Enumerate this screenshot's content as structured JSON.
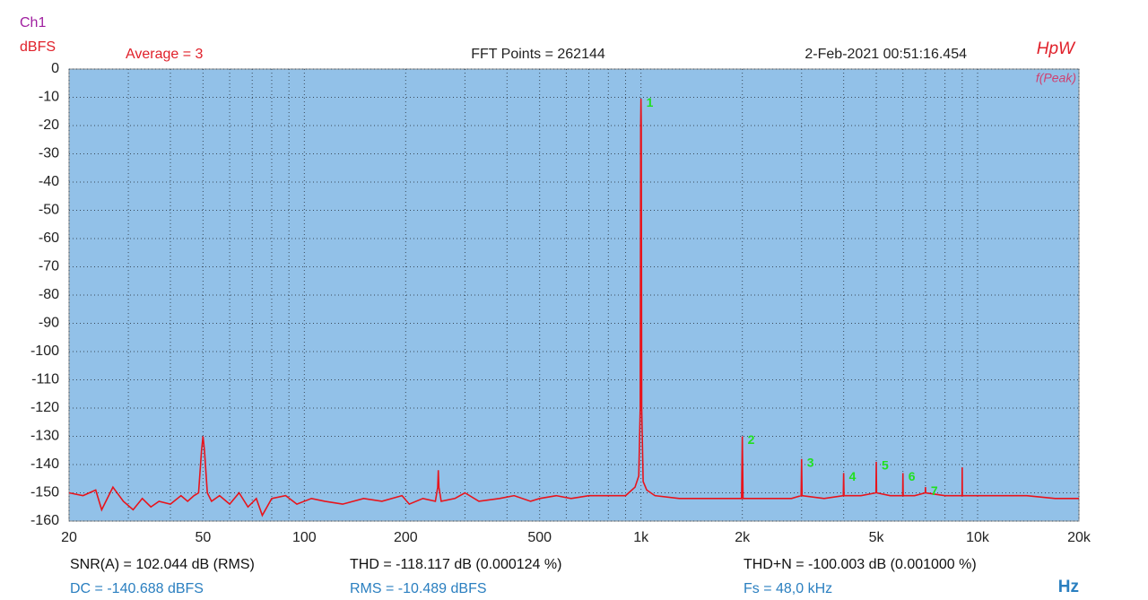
{
  "chart_data": {
    "type": "line",
    "channel": "Ch1",
    "y_label": "dBFS",
    "x_label": "Hz",
    "header": [
      "Average = 3",
      "FFT Points = 262144",
      "2-Feb-2021 00:51:16.454"
    ],
    "brand": "HpW",
    "marker_mode": "f(Peak)",
    "xlog": true,
    "grid": true,
    "xlim": [
      20,
      20000
    ],
    "ylim": [
      -160,
      0
    ],
    "xticks": [
      20,
      50,
      100,
      200,
      500,
      {
        "value": 1000,
        "label": "1k"
      },
      {
        "value": 2000,
        "label": "2k"
      },
      {
        "value": 5000,
        "label": "5k"
      },
      {
        "value": 10000,
        "label": "10k"
      },
      {
        "value": 20000,
        "label": "20k"
      }
    ],
    "xgrid": [
      30,
      40,
      60,
      70,
      80,
      90,
      300,
      400,
      600,
      700,
      800,
      900,
      3000,
      4000,
      6000,
      7000,
      8000,
      9000
    ],
    "yticks": [
      0,
      -10,
      -20,
      -30,
      -40,
      -50,
      -60,
      -70,
      -80,
      -90,
      -100,
      -110,
      -120,
      -130,
      -140,
      -150,
      -160
    ],
    "series": [
      {
        "name": "Ch1",
        "color": "#e8141c",
        "x": [
          20,
          22,
          24,
          25,
          27,
          29,
          31,
          33,
          35,
          37,
          40,
          43,
          45,
          47,
          48.5,
          49.5,
          50,
          50.5,
          51.5,
          53,
          56,
          60,
          64,
          68,
          72,
          75,
          80,
          88,
          95,
          105,
          115,
          130,
          150,
          170,
          195,
          205,
          225,
          245,
          249,
          250,
          251,
          255,
          280,
          300,
          330,
          380,
          420,
          470,
          500,
          560,
          620,
          700,
          800,
          900,
          960,
          985,
          995,
          998,
          1000,
          1002,
          1005,
          1015,
          1040,
          1100,
          1300,
          1600,
          1900,
          1990,
          2000,
          2010,
          2400,
          2800,
          2990,
          3000,
          3010,
          3500,
          3990,
          4000,
          4010,
          4500,
          4990,
          5000,
          5010,
          5500,
          5990,
          6000,
          6010,
          6500,
          6990,
          7000,
          7010,
          8000,
          8990,
          9000,
          9010,
          11000,
          14000,
          17000,
          20000
        ],
        "values": [
          -150,
          -151,
          -149,
          -156,
          -148,
          -153,
          -156,
          -152,
          -155,
          -153,
          -154,
          -151,
          -153,
          -151,
          -150,
          -135,
          -130,
          -135,
          -150,
          -153,
          -151,
          -154,
          -150,
          -155,
          -152,
          -158,
          -152,
          -151,
          -154,
          -152,
          -153,
          -154,
          -152,
          -153,
          -151,
          -154,
          -152,
          -153,
          -148,
          -142,
          -148,
          -153,
          -152,
          -150,
          -153,
          -152,
          -151,
          -153,
          -152,
          -151,
          -152,
          -151,
          -151,
          -151,
          -148,
          -144,
          -120,
          -20,
          -10.5,
          -20,
          -120,
          -146,
          -149,
          -151,
          -152,
          -152,
          -152,
          -152,
          -130,
          -152,
          -152,
          -152,
          -151,
          -138,
          -151,
          -152,
          -151,
          -143,
          -151,
          -151,
          -150,
          -139,
          -150,
          -151,
          -151,
          -143,
          -151,
          -151,
          -150,
          -148,
          -150,
          -151,
          -151,
          -141,
          -151,
          -151,
          -151,
          -152,
          -152
        ]
      }
    ],
    "peaks": [
      {
        "label": "1",
        "x": 1000,
        "y": -10.5
      },
      {
        "label": "2",
        "x": 2000,
        "y": -130
      },
      {
        "label": "3",
        "x": 3000,
        "y": -138
      },
      {
        "label": "4",
        "x": 4000,
        "y": -143
      },
      {
        "label": "5",
        "x": 5000,
        "y": -139
      },
      {
        "label": "6",
        "x": 6000,
        "y": -143
      },
      {
        "label": "7",
        "x": 7000,
        "y": -148
      }
    ],
    "stats": [
      [
        "SNR(A) = 102.044 dB (RMS)",
        "THD = -118.117 dB (0.000124 %)",
        "THD+N = -100.003 dB (0.001000 %)"
      ],
      [
        "DC = -140.688 dBFS",
        "RMS = -10.489 dBFS",
        "Fs = 48,0 kHz"
      ]
    ]
  }
}
